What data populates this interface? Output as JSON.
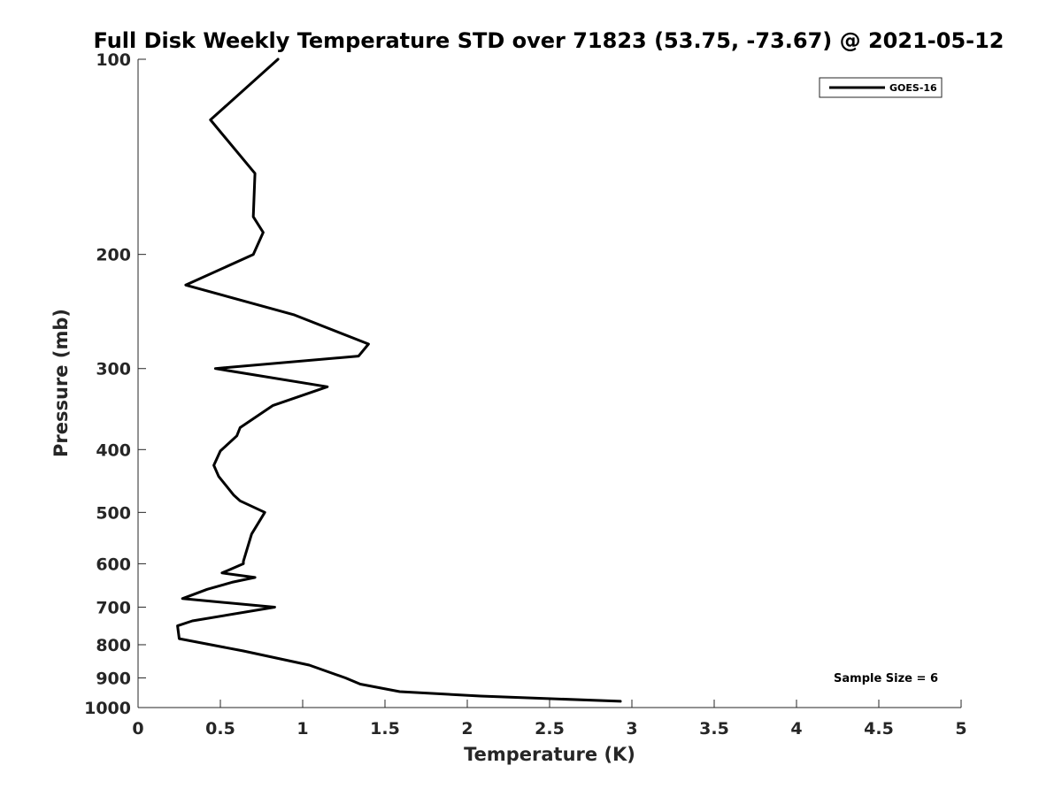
{
  "chart_data": {
    "type": "line",
    "title": "Full Disk Weekly Temperature STD over 71823 (53.75, -73.67) @ 2021-05-12",
    "xlabel": "Temperature (K)",
    "ylabel": "Pressure (mb)",
    "xlim": [
      0,
      5
    ],
    "ylim": [
      100,
      1000
    ],
    "y_scale": "log",
    "y_reversed": true,
    "grid": false,
    "legend_position": "top-right",
    "x_ticks": [
      "0",
      "0.5",
      "1",
      "1.5",
      "2",
      "2.5",
      "3",
      "3.5",
      "4",
      "4.5",
      "5"
    ],
    "y_ticks": [
      "100",
      "200",
      "300",
      "400",
      "500",
      "600",
      "700",
      "800",
      "900",
      "1000"
    ],
    "series": [
      {
        "name": "GOES-16",
        "color": "#000000",
        "points": [
          [
            0.85,
            100
          ],
          [
            0.44,
            124
          ],
          [
            0.71,
            150
          ],
          [
            0.7,
            175
          ],
          [
            0.76,
            185
          ],
          [
            0.7,
            200
          ],
          [
            0.29,
            223
          ],
          [
            0.95,
            248
          ],
          [
            1.4,
            275
          ],
          [
            1.34,
            287
          ],
          [
            0.47,
            300
          ],
          [
            1.15,
            320
          ],
          [
            0.82,
            342
          ],
          [
            0.62,
            370
          ],
          [
            0.6,
            381
          ],
          [
            0.5,
            402
          ],
          [
            0.46,
            423
          ],
          [
            0.49,
            440
          ],
          [
            0.58,
            470
          ],
          [
            0.62,
            480
          ],
          [
            0.77,
            500
          ],
          [
            0.69,
            540
          ],
          [
            0.64,
            595
          ],
          [
            0.64,
            600
          ],
          [
            0.51,
            620
          ],
          [
            0.71,
            630
          ],
          [
            0.57,
            641
          ],
          [
            0.42,
            657
          ],
          [
            0.27,
            679
          ],
          [
            0.83,
            700
          ],
          [
            0.33,
            735
          ],
          [
            0.24,
            748
          ],
          [
            0.25,
            783
          ],
          [
            0.64,
            818
          ],
          [
            1.04,
            860
          ],
          [
            1.26,
            900
          ],
          [
            1.35,
            920
          ],
          [
            1.59,
            945
          ],
          [
            2.08,
            960
          ],
          [
            2.93,
            978
          ]
        ]
      }
    ],
    "annotations": [
      "Sample Size = 6"
    ]
  }
}
